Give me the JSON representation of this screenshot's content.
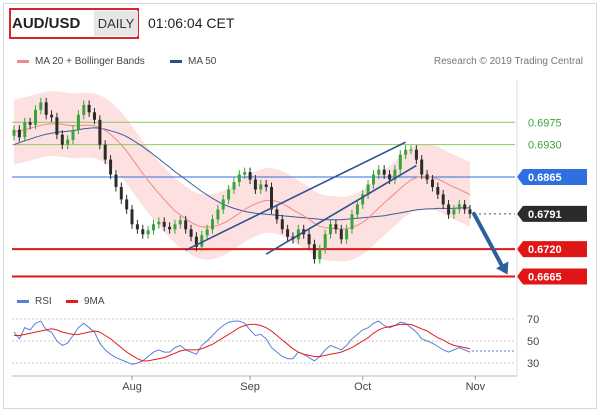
{
  "header": {
    "symbol": "AUD/USD",
    "timeframe": "DAILY",
    "time": "01:06:04 CET"
  },
  "legend": {
    "items": [
      {
        "label": "MA 20 + Bollinger Bands",
        "color": "#f08a8a"
      },
      {
        "label": "MA 50",
        "color": "#2e4f8f"
      }
    ],
    "copyright": "Research © 2019 Trading Central"
  },
  "rsi_legend": {
    "items": [
      {
        "label": "RSI",
        "color": "#5a7fd6"
      },
      {
        "label": "9MA",
        "color": "#e51c1c"
      }
    ]
  },
  "colors": {
    "bull": "#3aa33a",
    "bear": "#2b2b2b",
    "resistance": "#8fc85f",
    "support": "#e01515",
    "pivot": "#2f6fe0",
    "arrow": "#2d5f9a",
    "band": "#fde0e0"
  },
  "chart_data": {
    "type": "line",
    "title": "",
    "y_ticks": [
      0.6975,
      0.693,
      0.6865,
      0.6791,
      0.672,
      0.6665
    ],
    "y_tick_labels": [
      "0.6975",
      "0.6930",
      "0.6865",
      "0.6791",
      "0.6720",
      "0.6665"
    ],
    "x_ticks": [
      "Aug",
      "Sep",
      "Oct",
      "Nov"
    ],
    "ylim": [
      0.6648,
      0.706
    ],
    "levels": [
      {
        "value": 0.6975,
        "label": "0.6975",
        "kind": "resistance"
      },
      {
        "value": 0.693,
        "label": "0.6930",
        "kind": "resistance"
      },
      {
        "value": 0.6865,
        "label": "0.6865",
        "kind": "pivot"
      },
      {
        "value": 0.6791,
        "label": "0.6791",
        "kind": "last"
      },
      {
        "value": 0.672,
        "label": "0.6720",
        "kind": "support"
      },
      {
        "value": 0.6665,
        "label": "0.6665",
        "kind": "support"
      }
    ],
    "price": [
      0.696,
      0.6945,
      0.6975,
      0.697,
      0.7,
      0.7015,
      0.699,
      0.6985,
      0.695,
      0.693,
      0.694,
      0.696,
      0.699,
      0.701,
      0.6995,
      0.698,
      0.693,
      0.69,
      0.687,
      0.6845,
      0.682,
      0.68,
      0.677,
      0.676,
      0.675,
      0.6758,
      0.677,
      0.6775,
      0.6765,
      0.676,
      0.677,
      0.6778,
      0.676,
      0.6745,
      0.6725,
      0.6748,
      0.676,
      0.678,
      0.68,
      0.682,
      0.684,
      0.6855,
      0.687,
      0.6875,
      0.686,
      0.684,
      0.685,
      0.6845,
      0.68,
      0.678,
      0.676,
      0.6745,
      0.674,
      0.676,
      0.675,
      0.673,
      0.67,
      0.672,
      0.675,
      0.677,
      0.676,
      0.674,
      0.676,
      0.679,
      0.681,
      0.683,
      0.685,
      0.687,
      0.688,
      0.687,
      0.686,
      0.688,
      0.691,
      0.692,
      0.692,
      0.69,
      0.687,
      0.686,
      0.6845,
      0.683,
      0.681,
      0.679,
      0.68,
      0.681,
      0.68,
      0.6791
    ],
    "ma20": [
      0.6955,
      0.6958,
      0.696,
      0.6963,
      0.6966,
      0.6969,
      0.6971,
      0.6972,
      0.6972,
      0.6971,
      0.6969,
      0.6968,
      0.6968,
      0.6969,
      0.6969,
      0.6968,
      0.6964,
      0.6959,
      0.6951,
      0.6941,
      0.693,
      0.6917,
      0.6902,
      0.6887,
      0.6872,
      0.6858,
      0.6845,
      0.6832,
      0.682,
      0.6808,
      0.6797,
      0.6789,
      0.6781,
      0.6774,
      0.6768,
      0.6765,
      0.6764,
      0.6765,
      0.6768,
      0.6772,
      0.6778,
      0.6785,
      0.6792,
      0.68,
      0.6806,
      0.6811,
      0.6815,
      0.6818,
      0.6818,
      0.6816,
      0.6812,
      0.6806,
      0.6799,
      0.6793,
      0.6787,
      0.678,
      0.6772,
      0.6766,
      0.6763,
      0.6762,
      0.6761,
      0.676,
      0.6761,
      0.6764,
      0.6768,
      0.6774,
      0.6782,
      0.6792,
      0.6803,
      0.6813,
      0.6822,
      0.6832,
      0.6842,
      0.6851,
      0.6859,
      0.6864,
      0.6866,
      0.6866,
      0.6864,
      0.6861,
      0.6856,
      0.685,
      0.6845,
      0.684,
      0.6835,
      0.683
    ],
    "ma50": [
      0.693,
      0.6934,
      0.6938,
      0.6941,
      0.6945,
      0.6948,
      0.6951,
      0.6953,
      0.6955,
      0.6956,
      0.6957,
      0.6958,
      0.696,
      0.6962,
      0.6963,
      0.6964,
      0.6963,
      0.6961,
      0.6958,
      0.6955,
      0.6951,
      0.6946,
      0.694,
      0.6933,
      0.6926,
      0.6918,
      0.691,
      0.6902,
      0.6893,
      0.6885,
      0.6876,
      0.6868,
      0.686,
      0.6852,
      0.6844,
      0.6836,
      0.6829,
      0.6822,
      0.6816,
      0.681,
      0.6806,
      0.6802,
      0.6799,
      0.6796,
      0.6794,
      0.6792,
      0.6791,
      0.679,
      0.6789,
      0.6788,
      0.6787,
      0.6786,
      0.6785,
      0.6784,
      0.6783,
      0.6782,
      0.6781,
      0.678,
      0.6779,
      0.6779,
      0.6779,
      0.6779,
      0.678,
      0.6781,
      0.6782,
      0.6783,
      0.6784,
      0.6785,
      0.6786,
      0.6787,
      0.6789,
      0.6791,
      0.6793,
      0.6795,
      0.6797,
      0.6799,
      0.68,
      0.6801,
      0.6801,
      0.6802,
      0.6802,
      0.6802,
      0.6802,
      0.6803,
      0.6803,
      0.6803
    ],
    "channel": [
      {
        "from": [
          32,
          0.6718
        ],
        "to": [
          73,
          0.6935
        ]
      },
      {
        "from": [
          47,
          0.671
        ],
        "to": [
          75,
          0.6888
        ]
      }
    ],
    "forecast": {
      "from": [
        85,
        0.6791
      ],
      "to": [
        92,
        0.6665
      ]
    },
    "rsi": {
      "y_ticks": [
        70,
        50,
        30
      ],
      "ylim": [
        22,
        78
      ],
      "values": [
        58,
        52,
        62,
        60,
        66,
        68,
        60,
        58,
        50,
        46,
        48,
        55,
        62,
        66,
        62,
        58,
        48,
        42,
        38,
        35,
        33,
        31,
        29,
        30,
        32,
        36,
        40,
        42,
        40,
        40,
        44,
        46,
        42,
        40,
        38,
        46,
        50,
        55,
        60,
        64,
        67,
        68,
        68,
        66,
        60,
        55,
        56,
        52,
        44,
        40,
        36,
        34,
        34,
        40,
        38,
        35,
        32,
        36,
        42,
        46,
        44,
        42,
        46,
        52,
        56,
        60,
        62,
        66,
        68,
        64,
        62,
        64,
        67,
        66,
        62,
        58,
        52,
        50,
        48,
        45,
        42,
        40,
        42,
        44,
        42,
        40
      ],
      "ma": [
        55,
        55,
        56,
        57,
        58,
        59,
        60,
        61,
        60,
        58,
        57,
        56,
        56,
        57,
        58,
        59,
        58,
        55,
        52,
        48,
        44,
        40,
        37,
        34,
        32,
        32,
        33,
        34,
        35,
        37,
        39,
        41,
        42,
        42,
        42,
        43,
        45,
        47,
        50,
        53,
        56,
        59,
        62,
        64,
        65,
        65,
        64,
        62,
        59,
        55,
        51,
        47,
        43,
        40,
        38,
        37,
        36,
        36,
        37,
        38,
        39,
        40,
        42,
        44,
        47,
        50,
        53,
        57,
        60,
        62,
        63,
        64,
        65,
        65,
        65,
        63,
        61,
        59,
        56,
        53,
        51,
        48,
        46,
        45,
        44,
        43
      ],
      "dotted_value": 41
    }
  }
}
